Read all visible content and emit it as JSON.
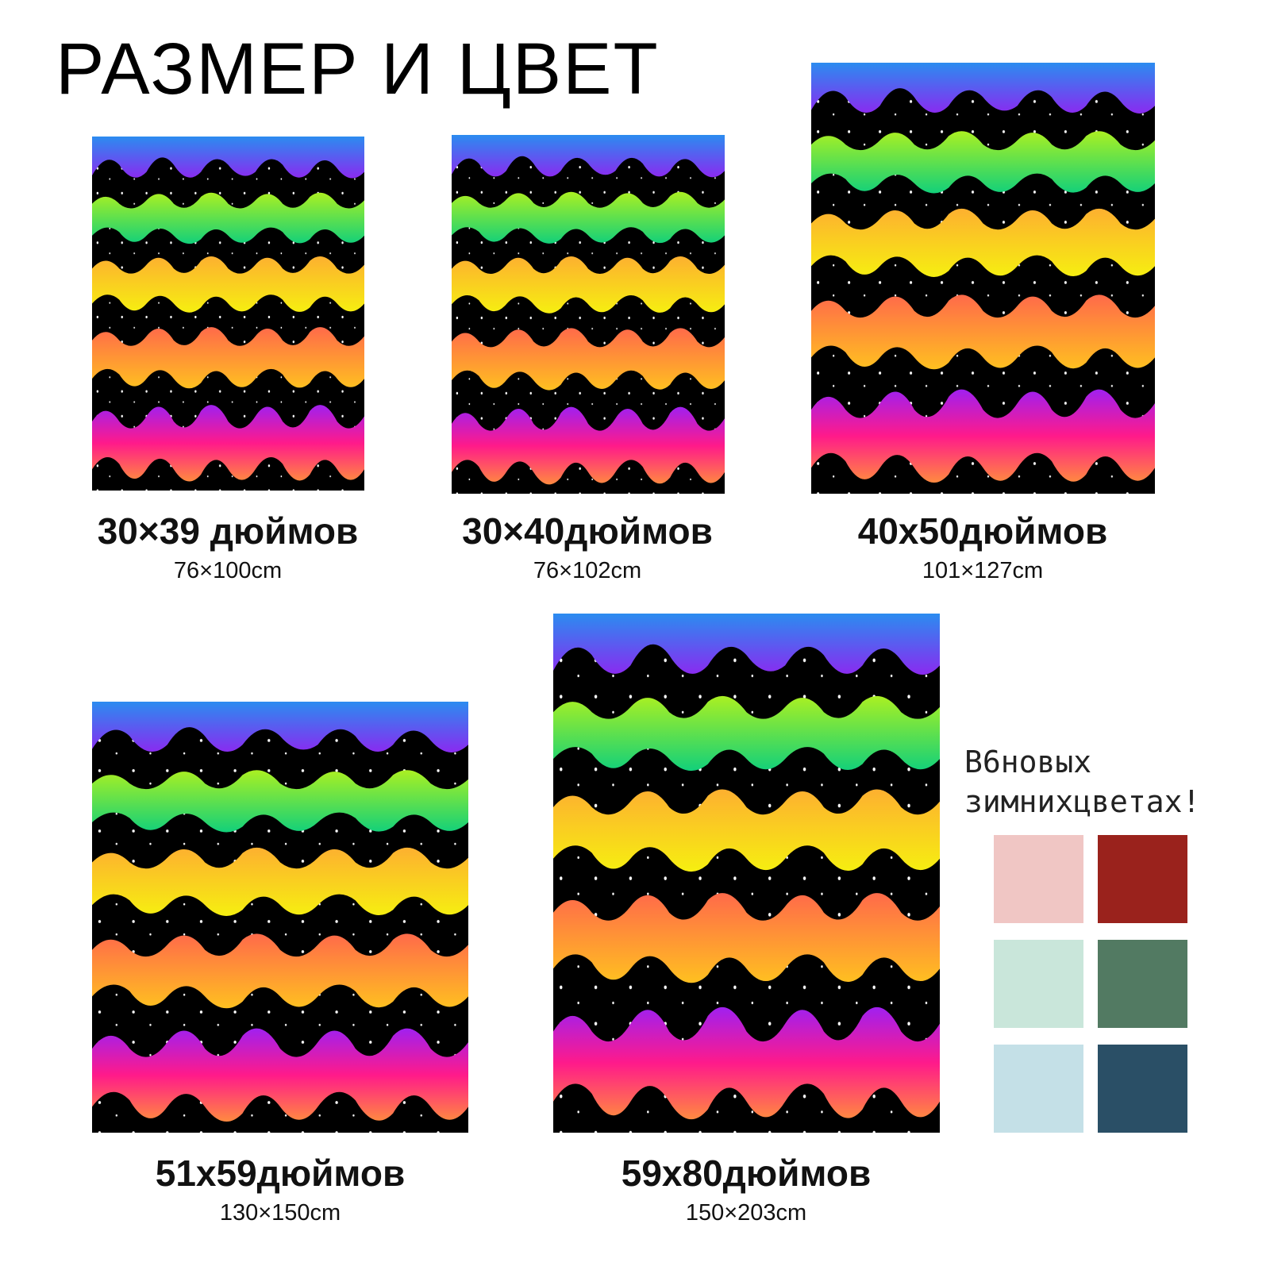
{
  "header": {
    "title": "РАЗМЕР И ЦВЕТ"
  },
  "products": [
    {
      "size_in": "30×39 дюймов",
      "size_cm": "76×100cm"
    },
    {
      "size_in": "30×40дюймов",
      "size_cm": "76×102cm"
    },
    {
      "size_in": "40x50дюймов",
      "size_cm": "101×127cm"
    },
    {
      "size_in": "51x59дюймов",
      "size_cm": "130×150cm"
    },
    {
      "size_in": "59x80дюймов",
      "size_cm": "150×203cm"
    }
  ],
  "colors_note": {
    "line1": "B6новых",
    "line2": "зимнихцветах!"
  },
  "swatches": [
    "#f0c6c4",
    "#9a221c",
    "#c9e6da",
    "#527a62",
    "#c4e0e7",
    "#2a4f66"
  ]
}
